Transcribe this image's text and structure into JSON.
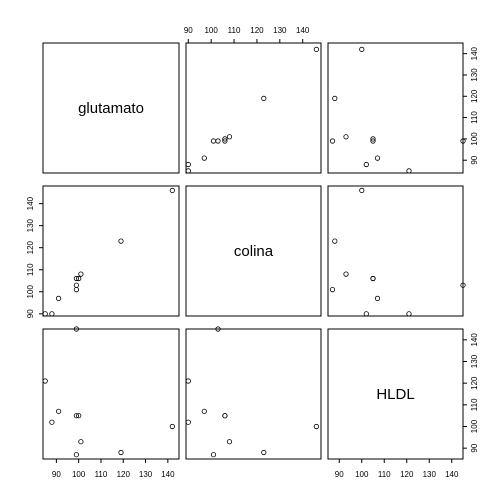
{
  "chart_data": {
    "type": "scatter",
    "variables": [
      "glutamato",
      "colina",
      "HLDL"
    ],
    "ranges": {
      "glutamato": [
        84,
        145
      ],
      "colina": [
        89,
        148
      ],
      "HLDL": [
        85,
        145
      ]
    },
    "ticks": {
      "glutamato": [
        90,
        100,
        110,
        120,
        130,
        140
      ],
      "colina": [
        90,
        100,
        110,
        120,
        130,
        140
      ],
      "HLDL": [
        90,
        100,
        110,
        120,
        130,
        140
      ]
    },
    "observations": [
      {
        "glutamato": 142,
        "colina": 146,
        "HLDL": 100
      },
      {
        "glutamato": 119,
        "colina": 123,
        "HLDL": 88
      },
      {
        "glutamato": 101,
        "colina": 108,
        "HLDL": 93
      },
      {
        "glutamato": 100,
        "colina": 106,
        "HLDL": 105
      },
      {
        "glutamato": 99,
        "colina": 106,
        "HLDL": 105
      },
      {
        "glutamato": 99,
        "colina": 103,
        "HLDL": 145
      },
      {
        "glutamato": 99,
        "colina": 101,
        "HLDL": 87
      },
      {
        "glutamato": 91,
        "colina": 97,
        "HLDL": 107
      },
      {
        "glutamato": 88,
        "colina": 90,
        "HLDL": 102
      },
      {
        "glutamato": 85,
        "colina": 90,
        "HLDL": 121
      }
    ]
  }
}
